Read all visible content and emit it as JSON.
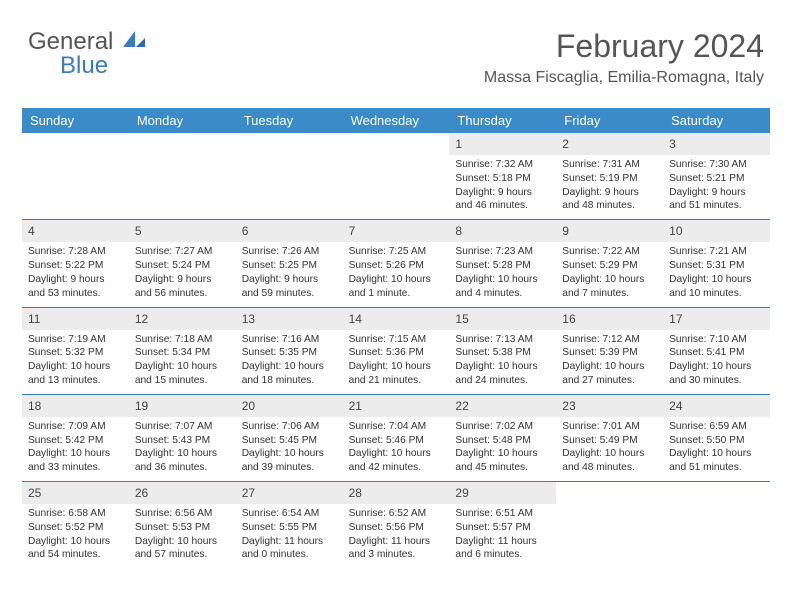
{
  "logo": {
    "part1": "General",
    "part2": "Blue"
  },
  "header": {
    "month": "February 2024",
    "location": "Massa Fiscaglia, Emilia-Romagna, Italy"
  },
  "colors": {
    "header_bg": "#3b8bc8",
    "header_text": "#ffffff",
    "accent": "#3b7bbf",
    "daynum_bg": "#ececec",
    "text": "#333333"
  },
  "dayNames": [
    "Sunday",
    "Monday",
    "Tuesday",
    "Wednesday",
    "Thursday",
    "Friday",
    "Saturday"
  ],
  "leadingBlanks": 4,
  "days": [
    {
      "n": 1,
      "sunrise": "7:32 AM",
      "sunset": "5:18 PM",
      "daylight": "9 hours and 46 minutes."
    },
    {
      "n": 2,
      "sunrise": "7:31 AM",
      "sunset": "5:19 PM",
      "daylight": "9 hours and 48 minutes."
    },
    {
      "n": 3,
      "sunrise": "7:30 AM",
      "sunset": "5:21 PM",
      "daylight": "9 hours and 51 minutes."
    },
    {
      "n": 4,
      "sunrise": "7:28 AM",
      "sunset": "5:22 PM",
      "daylight": "9 hours and 53 minutes."
    },
    {
      "n": 5,
      "sunrise": "7:27 AM",
      "sunset": "5:24 PM",
      "daylight": "9 hours and 56 minutes."
    },
    {
      "n": 6,
      "sunrise": "7:26 AM",
      "sunset": "5:25 PM",
      "daylight": "9 hours and 59 minutes."
    },
    {
      "n": 7,
      "sunrise": "7:25 AM",
      "sunset": "5:26 PM",
      "daylight": "10 hours and 1 minute."
    },
    {
      "n": 8,
      "sunrise": "7:23 AM",
      "sunset": "5:28 PM",
      "daylight": "10 hours and 4 minutes."
    },
    {
      "n": 9,
      "sunrise": "7:22 AM",
      "sunset": "5:29 PM",
      "daylight": "10 hours and 7 minutes."
    },
    {
      "n": 10,
      "sunrise": "7:21 AM",
      "sunset": "5:31 PM",
      "daylight": "10 hours and 10 minutes."
    },
    {
      "n": 11,
      "sunrise": "7:19 AM",
      "sunset": "5:32 PM",
      "daylight": "10 hours and 13 minutes."
    },
    {
      "n": 12,
      "sunrise": "7:18 AM",
      "sunset": "5:34 PM",
      "daylight": "10 hours and 15 minutes."
    },
    {
      "n": 13,
      "sunrise": "7:16 AM",
      "sunset": "5:35 PM",
      "daylight": "10 hours and 18 minutes."
    },
    {
      "n": 14,
      "sunrise": "7:15 AM",
      "sunset": "5:36 PM",
      "daylight": "10 hours and 21 minutes."
    },
    {
      "n": 15,
      "sunrise": "7:13 AM",
      "sunset": "5:38 PM",
      "daylight": "10 hours and 24 minutes."
    },
    {
      "n": 16,
      "sunrise": "7:12 AM",
      "sunset": "5:39 PM",
      "daylight": "10 hours and 27 minutes."
    },
    {
      "n": 17,
      "sunrise": "7:10 AM",
      "sunset": "5:41 PM",
      "daylight": "10 hours and 30 minutes."
    },
    {
      "n": 18,
      "sunrise": "7:09 AM",
      "sunset": "5:42 PM",
      "daylight": "10 hours and 33 minutes."
    },
    {
      "n": 19,
      "sunrise": "7:07 AM",
      "sunset": "5:43 PM",
      "daylight": "10 hours and 36 minutes."
    },
    {
      "n": 20,
      "sunrise": "7:06 AM",
      "sunset": "5:45 PM",
      "daylight": "10 hours and 39 minutes."
    },
    {
      "n": 21,
      "sunrise": "7:04 AM",
      "sunset": "5:46 PM",
      "daylight": "10 hours and 42 minutes."
    },
    {
      "n": 22,
      "sunrise": "7:02 AM",
      "sunset": "5:48 PM",
      "daylight": "10 hours and 45 minutes."
    },
    {
      "n": 23,
      "sunrise": "7:01 AM",
      "sunset": "5:49 PM",
      "daylight": "10 hours and 48 minutes."
    },
    {
      "n": 24,
      "sunrise": "6:59 AM",
      "sunset": "5:50 PM",
      "daylight": "10 hours and 51 minutes."
    },
    {
      "n": 25,
      "sunrise": "6:58 AM",
      "sunset": "5:52 PM",
      "daylight": "10 hours and 54 minutes."
    },
    {
      "n": 26,
      "sunrise": "6:56 AM",
      "sunset": "5:53 PM",
      "daylight": "10 hours and 57 minutes."
    },
    {
      "n": 27,
      "sunrise": "6:54 AM",
      "sunset": "5:55 PM",
      "daylight": "11 hours and 0 minutes."
    },
    {
      "n": 28,
      "sunrise": "6:52 AM",
      "sunset": "5:56 PM",
      "daylight": "11 hours and 3 minutes."
    },
    {
      "n": 29,
      "sunrise": "6:51 AM",
      "sunset": "5:57 PM",
      "daylight": "11 hours and 6 minutes."
    }
  ],
  "labels": {
    "sunrise": "Sunrise: ",
    "sunset": "Sunset: ",
    "daylight": "Daylight: "
  }
}
